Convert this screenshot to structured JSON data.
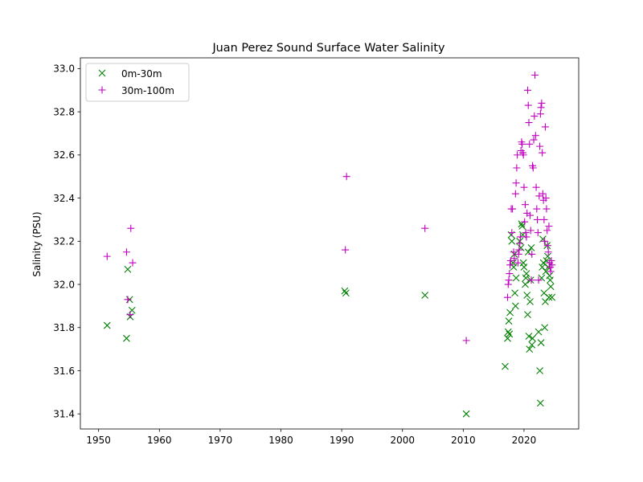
{
  "chart_data": {
    "type": "scatter",
    "title": "Juan Perez Sound Surface Water Salinity",
    "xlabel": "",
    "ylabel": "Salinity (PSU)",
    "xlim": [
      1947,
      2029
    ],
    "ylim": [
      31.33,
      33.05
    ],
    "xticks": [
      1950,
      1960,
      1970,
      1980,
      1990,
      2000,
      2010,
      2020
    ],
    "yticks": [
      31.4,
      31.6,
      31.8,
      32.0,
      32.2,
      32.4,
      32.6,
      32.8,
      33.0
    ],
    "ytick_labels": [
      "31.4",
      "31.6",
      "31.8",
      "32.0",
      "32.2",
      "32.4",
      "32.6",
      "32.8",
      "33.0"
    ],
    "grid": false,
    "legend_position": "upper-left",
    "series": [
      {
        "name": "0m-30m",
        "marker": "x",
        "color": "#008000",
        "points": [
          [
            1951.4,
            31.81
          ],
          [
            1954.6,
            31.75
          ],
          [
            1954.8,
            32.07
          ],
          [
            1955.1,
            31.93
          ],
          [
            1955.2,
            31.85
          ],
          [
            1955.5,
            31.88
          ],
          [
            1990.5,
            31.97
          ],
          [
            1990.7,
            31.96
          ],
          [
            2003.7,
            31.95
          ],
          [
            2010.5,
            31.4
          ],
          [
            2016.9,
            31.62
          ],
          [
            2017.3,
            31.75
          ],
          [
            2017.4,
            31.78
          ],
          [
            2017.5,
            31.83
          ],
          [
            2017.6,
            31.77
          ],
          [
            2017.7,
            31.87
          ],
          [
            2017.9,
            32.23
          ],
          [
            2018.0,
            32.2
          ],
          [
            2018.2,
            32.1
          ],
          [
            2018.3,
            32.08
          ],
          [
            2018.4,
            32.14
          ],
          [
            2018.5,
            31.96
          ],
          [
            2018.6,
            31.9
          ],
          [
            2018.7,
            32.03
          ],
          [
            2019.3,
            32.2
          ],
          [
            2019.5,
            32.17
          ],
          [
            2019.6,
            32.28
          ],
          [
            2019.7,
            32.27
          ],
          [
            2019.8,
            32.23
          ],
          [
            2019.9,
            32.1
          ],
          [
            2020.0,
            32.08
          ],
          [
            2020.2,
            32.0
          ],
          [
            2020.3,
            32.03
          ],
          [
            2020.4,
            32.05
          ],
          [
            2020.5,
            31.95
          ],
          [
            2020.6,
            31.86
          ],
          [
            2020.7,
            32.15
          ],
          [
            2020.8,
            31.76
          ],
          [
            2020.9,
            31.7
          ],
          [
            2021.0,
            31.92
          ],
          [
            2021.1,
            32.02
          ],
          [
            2021.2,
            32.17
          ],
          [
            2021.3,
            31.72
          ],
          [
            2021.4,
            31.75
          ],
          [
            2022.4,
            31.78
          ],
          [
            2022.6,
            31.6
          ],
          [
            2022.7,
            31.45
          ],
          [
            2022.8,
            31.73
          ],
          [
            2022.9,
            32.03
          ],
          [
            2023.0,
            32.08
          ],
          [
            2023.1,
            32.21
          ],
          [
            2023.2,
            32.1
          ],
          [
            2023.3,
            31.96
          ],
          [
            2023.4,
            31.8
          ],
          [
            2023.5,
            31.92
          ],
          [
            2023.6,
            32.06
          ],
          [
            2023.7,
            32.11
          ],
          [
            2023.8,
            32.18
          ],
          [
            2023.9,
            32.13
          ],
          [
            2024.0,
            32.08
          ],
          [
            2024.1,
            31.94
          ],
          [
            2024.2,
            32.04
          ],
          [
            2024.3,
            32.02
          ],
          [
            2024.4,
            31.99
          ],
          [
            2024.6,
            31.94
          ]
        ]
      },
      {
        "name": "30m-100m",
        "marker": "+",
        "color": "#bf00bf",
        "points": [
          [
            1951.4,
            32.13
          ],
          [
            1954.6,
            32.15
          ],
          [
            1954.8,
            31.93
          ],
          [
            1955.2,
            31.86
          ],
          [
            1955.3,
            32.26
          ],
          [
            1955.6,
            32.1
          ],
          [
            1990.6,
            32.16
          ],
          [
            1990.8,
            32.5
          ],
          [
            2003.7,
            32.26
          ],
          [
            2010.5,
            31.74
          ],
          [
            2017.3,
            31.94
          ],
          [
            2017.4,
            32.0
          ],
          [
            2017.5,
            32.02
          ],
          [
            2017.6,
            32.05
          ],
          [
            2017.7,
            32.09
          ],
          [
            2017.8,
            32.11
          ],
          [
            2017.9,
            32.35
          ],
          [
            2018.0,
            32.24
          ],
          [
            2018.1,
            32.35
          ],
          [
            2018.3,
            32.15
          ],
          [
            2018.4,
            32.12
          ],
          [
            2018.6,
            32.42
          ],
          [
            2018.7,
            32.47
          ],
          [
            2018.8,
            32.54
          ],
          [
            2018.9,
            32.6
          ],
          [
            2019.0,
            32.1
          ],
          [
            2019.1,
            32.14
          ],
          [
            2019.2,
            32.16
          ],
          [
            2019.3,
            32.19
          ],
          [
            2019.4,
            32.22
          ],
          [
            2019.5,
            32.62
          ],
          [
            2019.6,
            32.66
          ],
          [
            2019.7,
            32.65
          ],
          [
            2019.8,
            32.61
          ],
          [
            2019.9,
            32.6
          ],
          [
            2020.0,
            32.45
          ],
          [
            2020.1,
            32.29
          ],
          [
            2020.2,
            32.37
          ],
          [
            2020.3,
            32.24
          ],
          [
            2020.4,
            32.22
          ],
          [
            2020.5,
            32.33
          ],
          [
            2020.6,
            32.9
          ],
          [
            2020.7,
            32.83
          ],
          [
            2020.8,
            32.75
          ],
          [
            2020.9,
            32.65
          ],
          [
            2021.0,
            32.32
          ],
          [
            2021.1,
            32.25
          ],
          [
            2021.2,
            32.02
          ],
          [
            2021.3,
            32.14
          ],
          [
            2021.4,
            32.55
          ],
          [
            2021.5,
            32.54
          ],
          [
            2021.6,
            32.67
          ],
          [
            2021.7,
            32.78
          ],
          [
            2021.8,
            32.97
          ],
          [
            2021.9,
            32.69
          ],
          [
            2022.0,
            32.45
          ],
          [
            2022.1,
            32.35
          ],
          [
            2022.2,
            32.3
          ],
          [
            2022.3,
            32.24
          ],
          [
            2022.4,
            32.02
          ],
          [
            2022.5,
            32.41
          ],
          [
            2022.6,
            32.64
          ],
          [
            2022.7,
            32.79
          ],
          [
            2022.8,
            32.82
          ],
          [
            2022.9,
            32.84
          ],
          [
            2023.0,
            32.61
          ],
          [
            2023.1,
            32.42
          ],
          [
            2023.2,
            32.39
          ],
          [
            2023.3,
            32.3
          ],
          [
            2023.4,
            32.2
          ],
          [
            2023.5,
            32.73
          ],
          [
            2023.6,
            32.4
          ],
          [
            2023.7,
            32.35
          ],
          [
            2023.8,
            32.25
          ],
          [
            2023.9,
            32.18
          ],
          [
            2024.0,
            32.15
          ],
          [
            2024.1,
            32.27
          ],
          [
            2024.2,
            32.1
          ],
          [
            2024.3,
            32.08
          ],
          [
            2024.4,
            32.06
          ],
          [
            2024.5,
            32.11
          ],
          [
            2024.6,
            32.09
          ]
        ]
      }
    ]
  }
}
